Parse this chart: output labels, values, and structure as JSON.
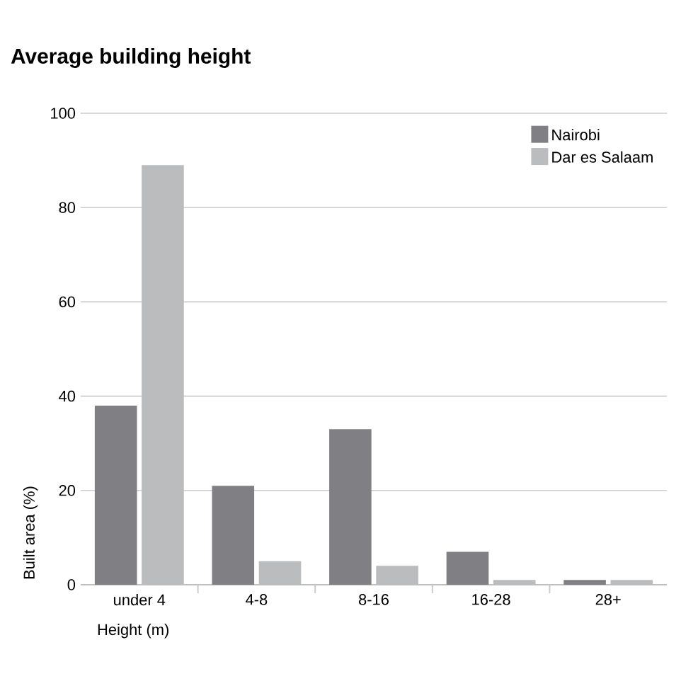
{
  "chart_data": {
    "type": "bar",
    "title": "Average building height",
    "xlabel": "Height (m)",
    "ylabel": "Built area (%)",
    "categories": [
      "under 4",
      "4-8",
      "8-16",
      "16-28",
      "28+"
    ],
    "series": [
      {
        "name": "Nairobi",
        "color": "#808084",
        "values": [
          38,
          21,
          33,
          7,
          1
        ]
      },
      {
        "name": "Dar es Salaam",
        "color": "#bbbcbe",
        "values": [
          89,
          5,
          4,
          1,
          1
        ]
      }
    ],
    "ylim": [
      0,
      100
    ],
    "yticks": [
      0,
      20,
      40,
      60,
      80,
      100
    ],
    "grid": "y",
    "legend": "top right"
  }
}
